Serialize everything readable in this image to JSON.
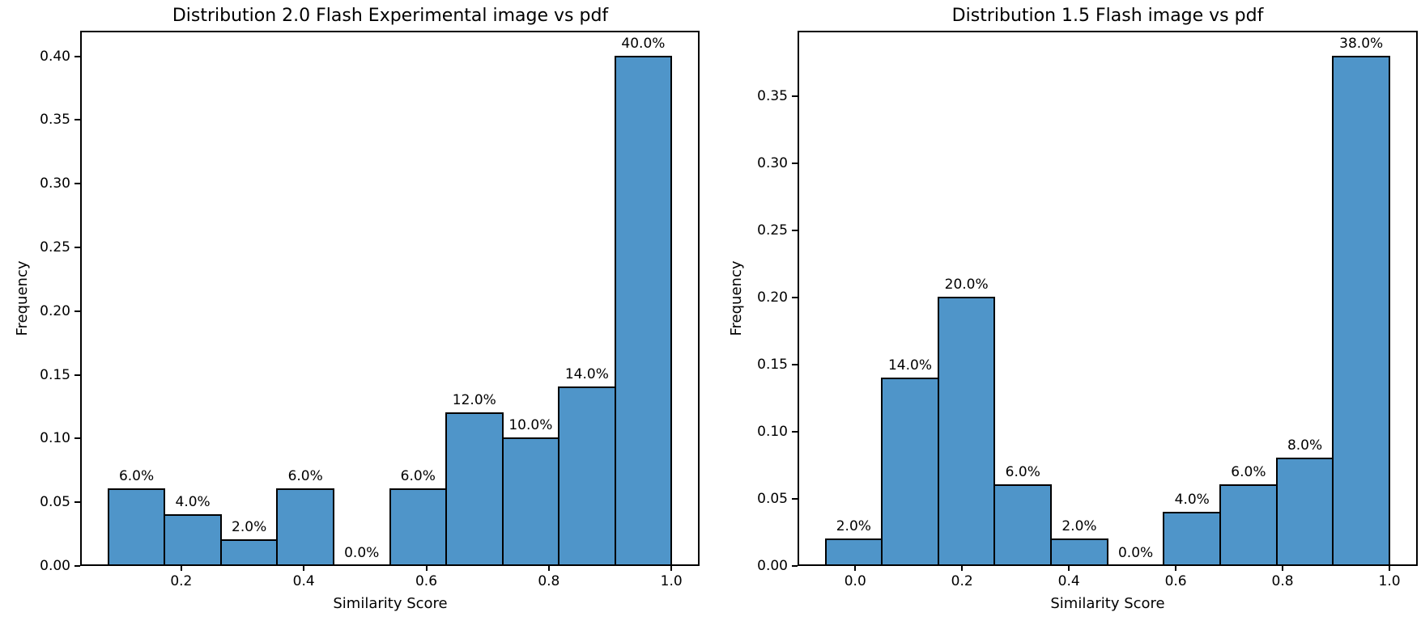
{
  "figure": {
    "background": "#ffffff",
    "bar_fill": "#4f95c9",
    "bar_edge": "#000000",
    "axis_color": "#000000",
    "text_color": "#000000"
  },
  "chart_data": [
    {
      "type": "bar",
      "title": "Distribution 2.0 Flash Experimental image vs pdf",
      "xlabel": "Similarity Score",
      "ylabel": "Frequency",
      "xlim": [
        0.035,
        1.046
      ],
      "ylim": [
        0,
        0.42
      ],
      "grid": false,
      "legend": "none",
      "bin_edges": [
        0.081,
        0.1729,
        0.2648,
        0.3567,
        0.4486,
        0.5405,
        0.6324,
        0.7243,
        0.8162,
        0.9081,
        1.0
      ],
      "values": [
        0.06,
        0.04,
        0.02,
        0.06,
        0.0,
        0.06,
        0.12,
        0.1,
        0.14,
        0.4
      ],
      "bar_labels": [
        "6.0%",
        "4.0%",
        "2.0%",
        "6.0%",
        "0.0%",
        "6.0%",
        "12.0%",
        "10.0%",
        "14.0%",
        "40.0%"
      ],
      "xticks": [
        0.2,
        0.4,
        0.6,
        0.8,
        1.0
      ],
      "xtick_labels": [
        "0.2",
        "0.4",
        "0.6",
        "0.8",
        "1.0"
      ],
      "yticks": [
        0.0,
        0.05,
        0.1,
        0.15,
        0.2,
        0.25,
        0.3,
        0.35,
        0.4
      ],
      "ytick_labels": [
        "0.00",
        "0.05",
        "0.10",
        "0.15",
        "0.20",
        "0.25",
        "0.30",
        "0.35",
        "0.40"
      ]
    },
    {
      "type": "bar",
      "title": "Distribution 1.5 Flash image vs pdf",
      "xlabel": "Similarity Score",
      "ylabel": "Frequency",
      "xlim": [
        -0.108,
        1.053
      ],
      "ylim": [
        0,
        0.399
      ],
      "grid": false,
      "legend": "none",
      "bin_edges": [
        -0.0557,
        0.0499,
        0.1555,
        0.261,
        0.3666,
        0.4722,
        0.5777,
        0.6833,
        0.7889,
        0.8944,
        1.0
      ],
      "values": [
        0.02,
        0.14,
        0.2,
        0.06,
        0.02,
        0.0,
        0.04,
        0.06,
        0.08,
        0.38
      ],
      "bar_labels": [
        "2.0%",
        "14.0%",
        "20.0%",
        "6.0%",
        "2.0%",
        "0.0%",
        "4.0%",
        "6.0%",
        "8.0%",
        "38.0%"
      ],
      "xticks": [
        0.0,
        0.2,
        0.4,
        0.6,
        0.8,
        1.0
      ],
      "xtick_labels": [
        "0.0",
        "0.2",
        "0.4",
        "0.6",
        "0.8",
        "1.0"
      ],
      "yticks": [
        0.0,
        0.05,
        0.1,
        0.15,
        0.2,
        0.25,
        0.3,
        0.35
      ],
      "ytick_labels": [
        "0.00",
        "0.05",
        "0.10",
        "0.15",
        "0.20",
        "0.25",
        "0.30",
        "0.35"
      ]
    }
  ]
}
